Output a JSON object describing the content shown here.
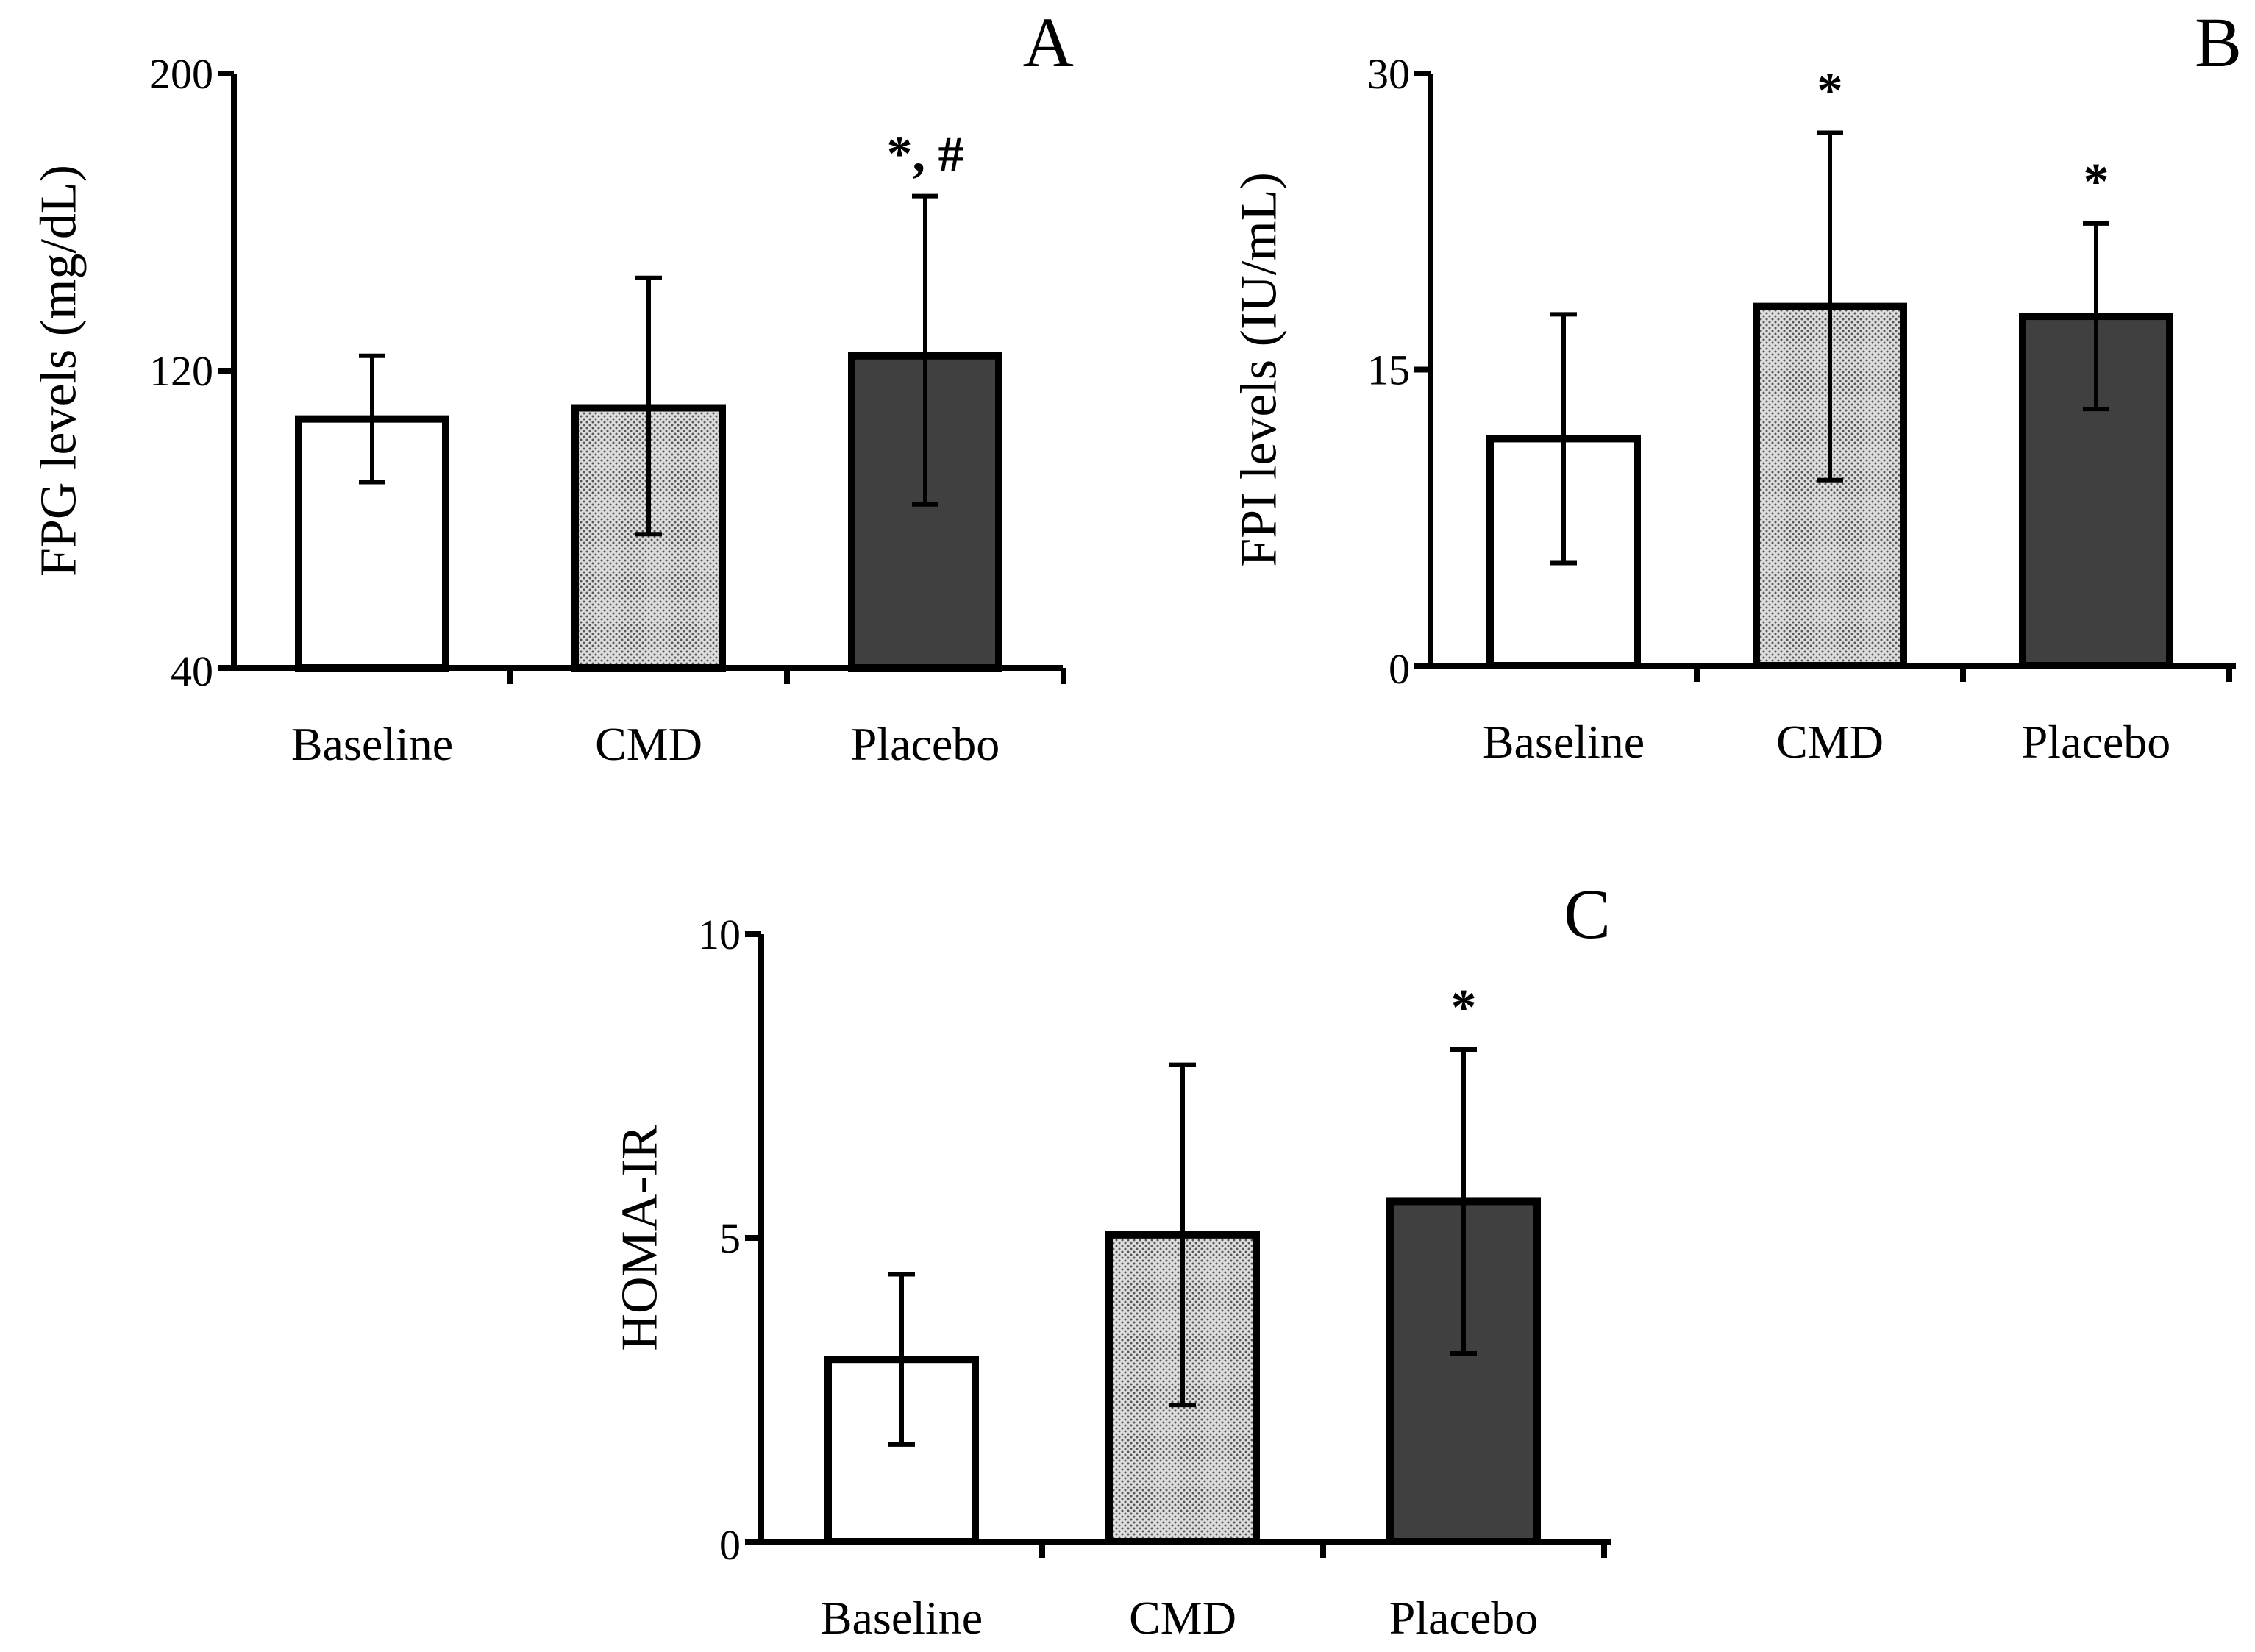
{
  "figure": {
    "colors": {
      "Baseline": "#ffffff",
      "CMD": "#dcdcdc",
      "Placebo": "#404040",
      "dot_pattern": "#555555",
      "axis": "#000000"
    }
  },
  "chart_data": [
    {
      "type": "bar",
      "panel_label": "A",
      "ylabel": "FPG levels (mg/dL)",
      "xlabel": "",
      "categories": [
        "Baseline",
        "CMD",
        "Placebo"
      ],
      "values": [
        107,
        110,
        124
      ],
      "error_low": [
        90,
        76,
        84
      ],
      "error_high": [
        124,
        145,
        167
      ],
      "significance": [
        "",
        "",
        "*, #"
      ],
      "ylim": [
        40,
        200
      ],
      "yticks": [
        40,
        120,
        200
      ]
    },
    {
      "type": "bar",
      "panel_label": "B",
      "ylabel": "FPI levels (IU/mL)",
      "xlabel": "",
      "categories": [
        "Baseline",
        "CMD",
        "Placebo"
      ],
      "values": [
        11.5,
        18.2,
        17.7
      ],
      "error_low": [
        5.2,
        9.4,
        13.0
      ],
      "error_high": [
        17.8,
        27.0,
        22.4
      ],
      "significance": [
        "",
        "*",
        "*"
      ],
      "ylim": [
        0,
        30
      ],
      "yticks": [
        0,
        15,
        30
      ]
    },
    {
      "type": "bar",
      "panel_label": "C",
      "ylabel": "HOMA-IR",
      "xlabel": "",
      "categories": [
        "Baseline",
        "CMD",
        "Placebo"
      ],
      "values": [
        3.0,
        5.05,
        5.6
      ],
      "error_low": [
        1.6,
        2.25,
        3.1
      ],
      "error_high": [
        4.4,
        7.85,
        8.1
      ],
      "significance": [
        "",
        "",
        "*"
      ],
      "ylim": [
        0,
        10
      ],
      "yticks": [
        0,
        5,
        10
      ]
    }
  ]
}
